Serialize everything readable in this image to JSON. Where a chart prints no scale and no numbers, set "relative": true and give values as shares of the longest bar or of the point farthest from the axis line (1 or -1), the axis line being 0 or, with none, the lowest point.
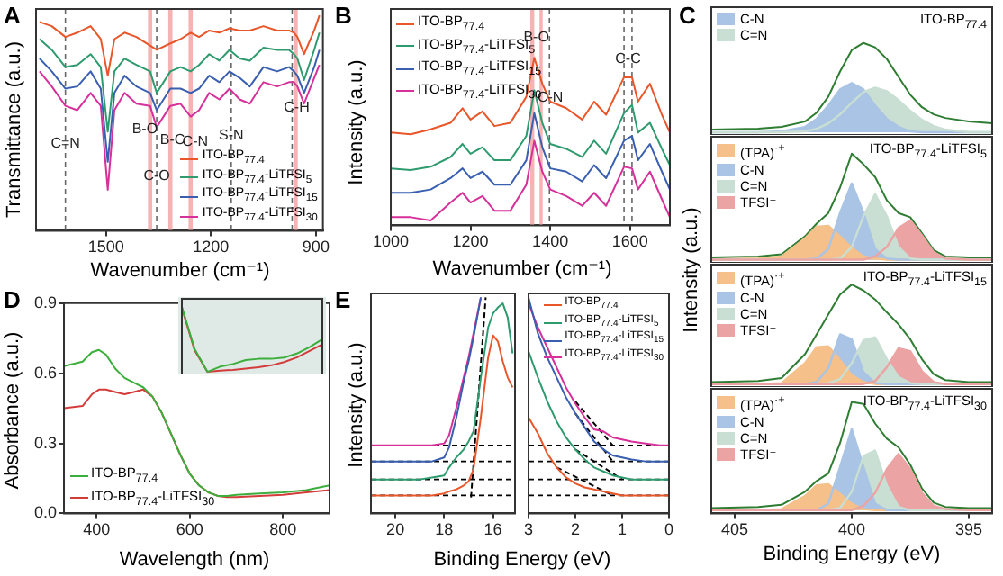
{
  "chart_data": [
    {
      "type": "line",
      "title": "A",
      "xlabel": "Wavenumber (cm⁻¹)",
      "ylabel": "Transmittance (a.u.)",
      "relative": true,
      "legend": "bottom right",
      "xlim": [
        1700,
        880
      ],
      "xticks": [
        1500,
        1200,
        900
      ],
      "x": [
        1690,
        1655,
        1616,
        1582,
        1544,
        1515,
        1495,
        1476,
        1447,
        1413,
        1374,
        1355,
        1316,
        1287,
        1258,
        1234,
        1205,
        1176,
        1147,
        1118,
        1089,
        1050,
        1011,
        977,
        963,
        953,
        934,
        905,
        890
      ],
      "series": [
        {
          "name": "ITO-BP$_{77.4}$",
          "color": "#e8562a",
          "values": [
            0.97,
            0.95,
            0.9,
            0.92,
            0.95,
            0.89,
            0.72,
            0.89,
            0.92,
            0.9,
            0.86,
            0.84,
            0.87,
            0.89,
            0.92,
            0.9,
            0.93,
            0.92,
            0.94,
            0.93,
            0.93,
            0.95,
            0.93,
            0.93,
            0.92,
            0.9,
            0.82,
            0.93,
            1.0
          ]
        },
        {
          "name": "ITO-BP$_{77.4}$-LiTFSI$_{5}$",
          "color": "#2e9b6e",
          "values": [
            0.89,
            0.84,
            0.76,
            0.77,
            0.82,
            0.76,
            0.46,
            0.74,
            0.8,
            0.77,
            0.74,
            0.64,
            0.74,
            0.76,
            0.74,
            0.77,
            0.82,
            0.79,
            0.84,
            0.8,
            0.79,
            0.85,
            0.84,
            0.84,
            0.82,
            0.8,
            0.7,
            0.84,
            0.92
          ]
        },
        {
          "name": "ITO-BP$_{77.4}$-LiTFSI$_{15}$",
          "color": "#3a5fb0",
          "values": [
            0.8,
            0.74,
            0.66,
            0.67,
            0.74,
            0.66,
            0.32,
            0.64,
            0.72,
            0.67,
            0.64,
            0.56,
            0.66,
            0.66,
            0.64,
            0.66,
            0.72,
            0.69,
            0.74,
            0.71,
            0.67,
            0.76,
            0.74,
            0.76,
            0.74,
            0.72,
            0.64,
            0.76,
            0.84
          ]
        },
        {
          "name": "ITO-BP$_{77.4}$-LiTFSI$_{30}$",
          "color": "#d6309a",
          "values": [
            0.74,
            0.67,
            0.58,
            0.56,
            0.64,
            0.58,
            0.19,
            0.56,
            0.64,
            0.59,
            0.58,
            0.48,
            0.58,
            0.59,
            0.53,
            0.56,
            0.64,
            0.61,
            0.66,
            0.61,
            0.59,
            0.69,
            0.67,
            0.69,
            0.69,
            0.67,
            0.59,
            0.71,
            0.77
          ]
        }
      ],
      "ref_lines": [
        {
          "axis": "x",
          "value": 1616,
          "color": "#666666",
          "line_style": "dashed"
        },
        {
          "axis": "x",
          "value": 1355,
          "color": "#666666",
          "line_style": "dashed"
        },
        {
          "axis": "x",
          "value": 1142,
          "color": "#666666",
          "line_style": "dashed"
        },
        {
          "axis": "x",
          "value": 968,
          "color": "#666666",
          "line_style": "dashed"
        }
      ],
      "bands": [
        {
          "axis": "x",
          "from": 1380,
          "to": 1368,
          "color": "#f6b3b3"
        },
        {
          "axis": "x",
          "from": 1322,
          "to": 1310,
          "color": "#f6b3b3"
        },
        {
          "axis": "x",
          "from": 1264,
          "to": 1252,
          "color": "#f6b3b3"
        },
        {
          "axis": "x",
          "from": 962,
          "to": 952,
          "color": "#f6b3b3"
        }
      ],
      "annotations": [
        {
          "text": "C=N",
          "x": 1616,
          "y": 0.37
        },
        {
          "text": "B-O",
          "x": 1389,
          "y": 0.44
        },
        {
          "text": "C-O",
          "x": 1355,
          "y": 0.22
        },
        {
          "text": "B-C",
          "x": 1310,
          "y": 0.39
        },
        {
          "text": "C-N",
          "x": 1245,
          "y": 0.38
        },
        {
          "text": "S-N",
          "x": 1142,
          "y": 0.41
        },
        {
          "text": "C-H",
          "x": 955,
          "y": 0.54
        }
      ]
    },
    {
      "type": "line",
      "title": "B",
      "xlabel": "Wavenumber (cm⁻¹)",
      "ylabel": "Intensity (a.u.)",
      "relative": true,
      "legend": "top left",
      "xlim": [
        1000,
        1700
      ],
      "xticks": [
        1000,
        1200,
        1400,
        1600
      ],
      "x": [
        1000,
        1050,
        1100,
        1150,
        1180,
        1200,
        1230,
        1260,
        1300,
        1340,
        1360,
        1380,
        1400,
        1440,
        1480,
        1510,
        1540,
        1585,
        1605,
        1620,
        1650,
        1680,
        1700
      ],
      "series": [
        {
          "name": "ITO-BP$_{77.4}$",
          "color": "#e8562a",
          "values": [
            0.54,
            0.53,
            0.56,
            0.6,
            0.69,
            0.62,
            0.67,
            0.58,
            0.6,
            0.76,
            1.0,
            0.84,
            0.73,
            0.69,
            0.62,
            0.73,
            0.65,
            0.88,
            0.88,
            0.73,
            0.84,
            0.65,
            0.54
          ]
        },
        {
          "name": "ITO-BP$_{77.4}$-LiTFSI$_{5}$",
          "color": "#2e9b6e",
          "values": [
            0.32,
            0.31,
            0.33,
            0.39,
            0.47,
            0.41,
            0.45,
            0.37,
            0.37,
            0.52,
            0.8,
            0.6,
            0.47,
            0.44,
            0.39,
            0.49,
            0.41,
            0.66,
            0.71,
            0.54,
            0.6,
            0.44,
            0.34
          ]
        },
        {
          "name": "ITO-BP$_{77.4}$-LiTFSI$_{15}$",
          "color": "#3a5fb0",
          "values": [
            0.17,
            0.17,
            0.19,
            0.26,
            0.32,
            0.26,
            0.3,
            0.22,
            0.22,
            0.37,
            0.66,
            0.45,
            0.32,
            0.3,
            0.24,
            0.34,
            0.26,
            0.49,
            0.52,
            0.37,
            0.47,
            0.3,
            0.19
          ]
        },
        {
          "name": "ITO-BP$_{77.4}$-LiTFSI$_{30}$",
          "color": "#d6309a",
          "values": [
            0.02,
            0.02,
            0.0,
            0.11,
            0.17,
            0.11,
            0.15,
            0.06,
            0.06,
            0.22,
            0.49,
            0.3,
            0.19,
            0.15,
            0.09,
            0.17,
            0.09,
            0.33,
            0.32,
            0.19,
            0.3,
            0.13,
            0.02
          ]
        }
      ],
      "ref_lines": [
        {
          "axis": "x",
          "value": 1398,
          "color": "#666666",
          "line_style": "dashed"
        },
        {
          "axis": "x",
          "value": 1585,
          "color": "#666666",
          "line_style": "dashed"
        },
        {
          "axis": "x",
          "value": 1605,
          "color": "#666666",
          "line_style": "dashed"
        }
      ],
      "bands": [
        {
          "axis": "x",
          "from": 1350,
          "to": 1360,
          "color": "#f6b3b3"
        },
        {
          "axis": "x",
          "from": 1373,
          "to": 1381,
          "color": "#f6b3b3"
        }
      ],
      "annotations": [
        {
          "text": "B-O",
          "x": 1365,
          "y": 1.08
        },
        {
          "text": "C-N",
          "x": 1400,
          "y": 0.71
        },
        {
          "text": "C-C",
          "x": 1595,
          "y": 0.95
        }
      ]
    },
    {
      "type": "area",
      "title": "C",
      "relative": true,
      "legend": "top left",
      "tick_labels": false,
      "xlim": [
        406,
        394
      ],
      "xticks": [
        405,
        400,
        395
      ],
      "x": [
        406,
        404,
        403,
        402,
        401.5,
        401,
        400.5,
        400,
        399.5,
        399,
        398.5,
        398,
        397.5,
        397,
        396.5,
        396,
        395,
        394
      ],
      "series": [
        {
          "name": "C-N",
          "color": "#a9c4e4",
          "values": [
            0,
            0,
            0.01,
            0.06,
            0.15,
            0.3,
            0.48,
            0.55,
            0.48,
            0.3,
            0.15,
            0.06,
            0.01,
            0,
            0,
            0,
            0,
            0
          ]
        },
        {
          "name": "C=N",
          "color": "#c9dfd3",
          "values": [
            0,
            0,
            0,
            0.01,
            0.04,
            0.1,
            0.2,
            0.33,
            0.45,
            0.5,
            0.46,
            0.36,
            0.24,
            0.14,
            0.07,
            0.03,
            0,
            0
          ]
        },
        {
          "type": "line",
          "color": "#2e7d32",
          "values": [
            0.03,
            0.04,
            0.06,
            0.12,
            0.22,
            0.4,
            0.68,
            0.92,
            1.0,
            0.95,
            0.82,
            0.62,
            0.42,
            0.28,
            0.2,
            0.16,
            0.12,
            0.1
          ]
        }
      ],
      "annotations": [
        "ITO-BP$_{77.4}$"
      ]
    },
    {
      "type": "area",
      "ylabel": "Intensity (a.u.)",
      "relative": true,
      "legend": "top left",
      "tick_labels": false,
      "xlim": [
        406,
        394
      ],
      "xticks": [
        405,
        400,
        395
      ],
      "x": [
        406,
        404,
        403,
        402,
        401.5,
        401,
        400.5,
        400,
        399.5,
        399,
        398.5,
        398,
        397.5,
        397,
        396.5,
        396,
        395,
        394
      ],
      "series": [
        {
          "name": "(TPA)$^{·+}$",
          "color": "#f5c08a",
          "values": [
            0,
            0.01,
            0.03,
            0.2,
            0.31,
            0.32,
            0.22,
            0.11,
            0.03,
            0.01,
            0,
            0,
            0,
            0,
            0,
            0,
            0,
            0
          ]
        },
        {
          "name": "C-N",
          "color": "#a9c4e4",
          "values": [
            0,
            0,
            0,
            0,
            0.01,
            0.1,
            0.44,
            0.72,
            0.44,
            0.1,
            0.01,
            0,
            0,
            0,
            0,
            0,
            0,
            0
          ]
        },
        {
          "name": "C=N",
          "color": "#c9dfd3",
          "values": [
            0,
            0,
            0,
            0,
            0,
            0,
            0.01,
            0.12,
            0.41,
            0.62,
            0.41,
            0.12,
            0.01,
            0,
            0,
            0,
            0,
            0
          ]
        },
        {
          "name": "TFSI⁻",
          "color": "#eba3a3",
          "values": [
            0,
            0,
            0,
            0,
            0,
            0,
            0,
            0,
            0,
            0.03,
            0.12,
            0.3,
            0.37,
            0.23,
            0.07,
            0.01,
            0,
            0
          ]
        },
        {
          "type": "line",
          "color": "#2e7d32",
          "values": [
            0.02,
            0.03,
            0.05,
            0.22,
            0.34,
            0.44,
            0.68,
            1.0,
            0.9,
            0.78,
            0.56,
            0.44,
            0.4,
            0.25,
            0.09,
            0.03,
            0.02,
            0.02
          ]
        }
      ],
      "annotations": [
        "ITO-BP$_{77.4}$-LiTFSI$_{5}$"
      ]
    },
    {
      "type": "area",
      "relative": true,
      "legend": "top left",
      "tick_labels": false,
      "xlim": [
        406,
        394
      ],
      "xticks": [
        405,
        400,
        395
      ],
      "x": [
        406,
        404,
        403,
        402,
        401.5,
        401,
        400.5,
        400,
        399.5,
        399,
        398.5,
        398,
        397.5,
        397,
        396.5,
        396,
        395,
        394
      ],
      "series": [
        {
          "name": "(TPA)$^{·+}$",
          "color": "#f5c08a",
          "values": [
            0,
            0,
            0.01,
            0.21,
            0.37,
            0.38,
            0.24,
            0.09,
            0.02,
            0,
            0,
            0,
            0,
            0,
            0,
            0,
            0,
            0
          ]
        },
        {
          "name": "C-N",
          "color": "#a9c4e4",
          "values": [
            0,
            0,
            0,
            0,
            0.02,
            0.16,
            0.5,
            0.45,
            0.12,
            0.01,
            0,
            0,
            0,
            0,
            0,
            0,
            0,
            0
          ]
        },
        {
          "name": "C=N",
          "color": "#c9dfd3",
          "values": [
            0,
            0,
            0,
            0,
            0,
            0.01,
            0.05,
            0.21,
            0.44,
            0.47,
            0.25,
            0.07,
            0.01,
            0,
            0,
            0,
            0,
            0
          ]
        },
        {
          "name": "TFSI⁻",
          "color": "#eba3a3",
          "values": [
            0,
            0,
            0,
            0,
            0,
            0,
            0,
            0,
            0,
            0.03,
            0.17,
            0.36,
            0.33,
            0.13,
            0.02,
            0,
            0,
            0
          ]
        },
        {
          "type": "line",
          "color": "#2e7d32",
          "values": [
            0.02,
            0.03,
            0.06,
            0.3,
            0.5,
            0.7,
            0.9,
            1.0,
            0.94,
            0.85,
            0.72,
            0.6,
            0.45,
            0.25,
            0.1,
            0.04,
            0.02,
            0.02
          ]
        }
      ],
      "annotations": [
        "ITO-BP$_{77.4}$-LiTFSI$_{15}$"
      ]
    },
    {
      "type": "area",
      "xlabel": "Binding Energy (eV)",
      "relative": true,
      "legend": "top left",
      "tick_labels": "x",
      "xlim": [
        406,
        394
      ],
      "xticks": [
        405,
        400,
        395
      ],
      "x": [
        406,
        404,
        403,
        402,
        401.5,
        401,
        400.5,
        400,
        399.5,
        399,
        398.5,
        398,
        397.5,
        397,
        396.5,
        396,
        395,
        394
      ],
      "series": [
        {
          "name": "(TPA)$^{·+}$",
          "color": "#f5c08a",
          "values": [
            0,
            0,
            0.01,
            0.13,
            0.23,
            0.24,
            0.15,
            0.06,
            0.01,
            0,
            0,
            0,
            0,
            0,
            0,
            0,
            0,
            0
          ]
        },
        {
          "name": "C-N",
          "color": "#a9c4e4",
          "values": [
            0,
            0,
            0,
            0,
            0,
            0.06,
            0.4,
            0.75,
            0.4,
            0.06,
            0,
            0,
            0,
            0,
            0,
            0,
            0,
            0
          ]
        },
        {
          "name": "C=N",
          "color": "#c9dfd3",
          "values": [
            0,
            0,
            0,
            0,
            0,
            0,
            0.02,
            0.17,
            0.5,
            0.55,
            0.23,
            0.03,
            0,
            0,
            0,
            0,
            0,
            0
          ]
        },
        {
          "name": "TFSI⁻",
          "color": "#eba3a3",
          "values": [
            0,
            0,
            0,
            0,
            0,
            0,
            0,
            0,
            0.04,
            0.16,
            0.38,
            0.52,
            0.38,
            0.16,
            0.04,
            0.01,
            0,
            0
          ]
        },
        {
          "type": "line",
          "color": "#2e7d32",
          "values": [
            0.02,
            0.03,
            0.05,
            0.17,
            0.27,
            0.34,
            0.62,
            1.0,
            0.98,
            0.8,
            0.66,
            0.58,
            0.42,
            0.2,
            0.07,
            0.03,
            0.02,
            0.02
          ]
        }
      ],
      "annotations": [
        "ITO-BP$_{77.4}$-LiTFSI$_{30}$"
      ]
    },
    {
      "type": "line",
      "title": "D",
      "xlabel": "Wavelength (nm)",
      "ylabel": "Absorbance (a.u.)",
      "legend": "bottom left",
      "xlim": [
        330,
        900
      ],
      "xticks": [
        400,
        600,
        800
      ],
      "ylim": [
        0,
        0.9
      ],
      "yticks": [
        {
          "value": 0,
          "label": "0.0"
        },
        0.3,
        0.6,
        0.9
      ],
      "x": [
        330,
        370,
        390,
        405,
        420,
        440,
        460,
        480,
        500,
        520,
        540,
        560,
        580,
        600,
        620,
        640,
        660,
        680,
        700,
        750,
        800,
        850,
        900
      ],
      "series": [
        {
          "name": "ITO-BP$_{77.4}$",
          "color": "#3cae3c",
          "values": [
            0.63,
            0.65,
            0.69,
            0.7,
            0.68,
            0.62,
            0.58,
            0.56,
            0.54,
            0.5,
            0.43,
            0.34,
            0.25,
            0.17,
            0.12,
            0.09,
            0.075,
            0.075,
            0.08,
            0.085,
            0.09,
            0.1,
            0.12
          ]
        },
        {
          "name": "ITO-BP$_{77.4}$-LiTFSI$_{30}$",
          "color": "#d43c3c",
          "values": [
            0.45,
            0.46,
            0.51,
            0.53,
            0.53,
            0.52,
            0.51,
            0.52,
            0.53,
            0.5,
            0.43,
            0.34,
            0.25,
            0.17,
            0.12,
            0.09,
            0.075,
            0.07,
            0.07,
            0.075,
            0.08,
            0.09,
            0.1
          ]
        }
      ]
    },
    {
      "type": "line",
      "relative": true,
      "tick_labels": false,
      "categories": [
        null,
        null,
        null,
        null,
        null,
        null,
        null,
        null,
        null,
        null,
        null,
        null
      ],
      "series": [
        {
          "color": "#3cae3c",
          "values": [
            1.0,
            0.35,
            0.0,
            0.08,
            0.12,
            0.18,
            0.2,
            0.2,
            0.22,
            0.28,
            0.38,
            0.5
          ]
        },
        {
          "color": "#d43c3c",
          "values": [
            0.98,
            0.33,
            0.0,
            0.02,
            0.03,
            0.05,
            0.07,
            0.1,
            0.15,
            0.22,
            0.32,
            0.42
          ]
        }
      ]
    },
    {
      "type": "line",
      "title": "E",
      "ylabel": "Intensity (a.u.)",
      "relative": true,
      "xlim": [
        21,
        15.1
      ],
      "xticks": [
        20,
        18,
        16
      ],
      "x": [
        21,
        20,
        19,
        18.5,
        18,
        17.8,
        17.5,
        17.2,
        17,
        16.8,
        16.5,
        16.2,
        16,
        15.8,
        15.6,
        15.4,
        15.2
      ],
      "series": [
        {
          "color": "#e8562a",
          "values": [
            0.01,
            0.01,
            0.01,
            0.01,
            0.02,
            0.03,
            0.04,
            0.06,
            0.08,
            0.14,
            0.4,
            0.7,
            0.81,
            0.78,
            0.68,
            0.6,
            0.55
          ]
        },
        {
          "color": "#2e9b6e",
          "values": [
            0.09,
            0.09,
            0.09,
            0.1,
            0.11,
            0.15,
            0.2,
            0.24,
            0.28,
            0.33,
            0.6,
            0.85,
            0.92,
            0.95,
            0.97,
            0.9,
            0.72
          ]
        },
        {
          "color": "#3a5fb0",
          "values": [
            0.18,
            0.18,
            0.18,
            0.18,
            0.2,
            0.25,
            0.4,
            0.58,
            0.68,
            0.8,
            1.0,
            null,
            null,
            null,
            null,
            null,
            null
          ]
        },
        {
          "color": "#d6309a",
          "values": [
            0.26,
            0.26,
            0.26,
            0.26,
            0.27,
            0.31,
            0.45,
            0.6,
            0.7,
            0.82,
            1.0,
            null,
            null,
            null,
            null,
            null,
            null
          ]
        },
        {
          "color": "#000000",
          "line_style": "dashed",
          "x": [
            16.9,
            16.3
          ],
          "values": [
            0.0,
            1.0
          ]
        }
      ],
      "ref_lines": [
        {
          "axis": "y",
          "value": 0.26,
          "color": "#000000",
          "line_style": "dashed"
        },
        {
          "axis": "y",
          "value": 0.18,
          "color": "#000000",
          "line_style": "dashed"
        },
        {
          "axis": "y",
          "value": 0.09,
          "color": "#000000",
          "line_style": "dashed"
        },
        {
          "axis": "y",
          "value": 0.01,
          "color": "#000000",
          "line_style": "dashed"
        }
      ]
    },
    {
      "type": "line",
      "xlabel": "Binding Energy (eV)",
      "relative": true,
      "legend": "top right",
      "xlim": [
        3,
        0
      ],
      "xticks": [
        3,
        2,
        1,
        0
      ],
      "x": [
        3,
        2.8,
        2.6,
        2.4,
        2.2,
        2,
        1.8,
        1.6,
        1.4,
        1.2,
        1,
        0.8,
        0.5,
        0.2,
        0
      ],
      "series": [
        {
          "name": "ITO-BP$_{77.4}$",
          "color": "#e8562a",
          "values": [
            0.4,
            0.32,
            0.22,
            0.15,
            0.1,
            0.07,
            0.05,
            0.04,
            0.03,
            0.02,
            0.01,
            0.01,
            0.01,
            0.01,
            0.01
          ]
        },
        {
          "name": "ITO-BP$_{77.4}$-LiTFSI$_{5}$",
          "color": "#2e9b6e",
          "values": [
            0.73,
            0.6,
            0.48,
            0.38,
            0.3,
            0.24,
            0.19,
            0.15,
            0.13,
            0.11,
            0.1,
            0.09,
            0.09,
            0.09,
            0.09
          ]
        },
        {
          "name": "ITO-BP$_{77.4}$-LiTFSI$_{15}$",
          "color": "#3a5fb0",
          "values": [
            1.0,
            0.82,
            0.7,
            0.6,
            0.5,
            0.42,
            0.35,
            0.28,
            0.24,
            0.21,
            0.2,
            0.19,
            0.18,
            0.18,
            0.18
          ]
        },
        {
          "name": "ITO-BP$_{77.4}$-LiTFSI$_{30}$",
          "color": "#d6309a",
          "values": [
            0.97,
            0.85,
            0.75,
            0.65,
            0.55,
            0.47,
            0.4,
            0.34,
            0.33,
            0.3,
            0.29,
            0.28,
            0.27,
            0.26,
            0.26
          ]
        },
        {
          "color": "#000000",
          "line_style": "dashed",
          "x": [
            2.0,
            1.2
          ],
          "values": [
            0.48,
            0.26
          ]
        },
        {
          "color": "#000000",
          "line_style": "dashed",
          "x": [
            2.0,
            1.2
          ],
          "values": [
            0.42,
            0.18
          ]
        },
        {
          "color": "#000000",
          "line_style": "dashed",
          "x": [
            2.0,
            1.0
          ],
          "values": [
            0.24,
            0.09
          ]
        },
        {
          "color": "#000000",
          "line_style": "dashed",
          "x": [
            2.4,
            1.2
          ],
          "values": [
            0.15,
            0.01
          ]
        }
      ],
      "ref_lines": [
        {
          "axis": "y",
          "value": 0.26,
          "color": "#000000",
          "line_style": "dashed"
        },
        {
          "axis": "y",
          "value": 0.18,
          "color": "#000000",
          "line_style": "dashed"
        },
        {
          "axis": "y",
          "value": 0.09,
          "color": "#000000",
          "line_style": "dashed"
        },
        {
          "axis": "y",
          "value": 0.01,
          "color": "#000000",
          "line_style": "dashed"
        }
      ]
    }
  ]
}
